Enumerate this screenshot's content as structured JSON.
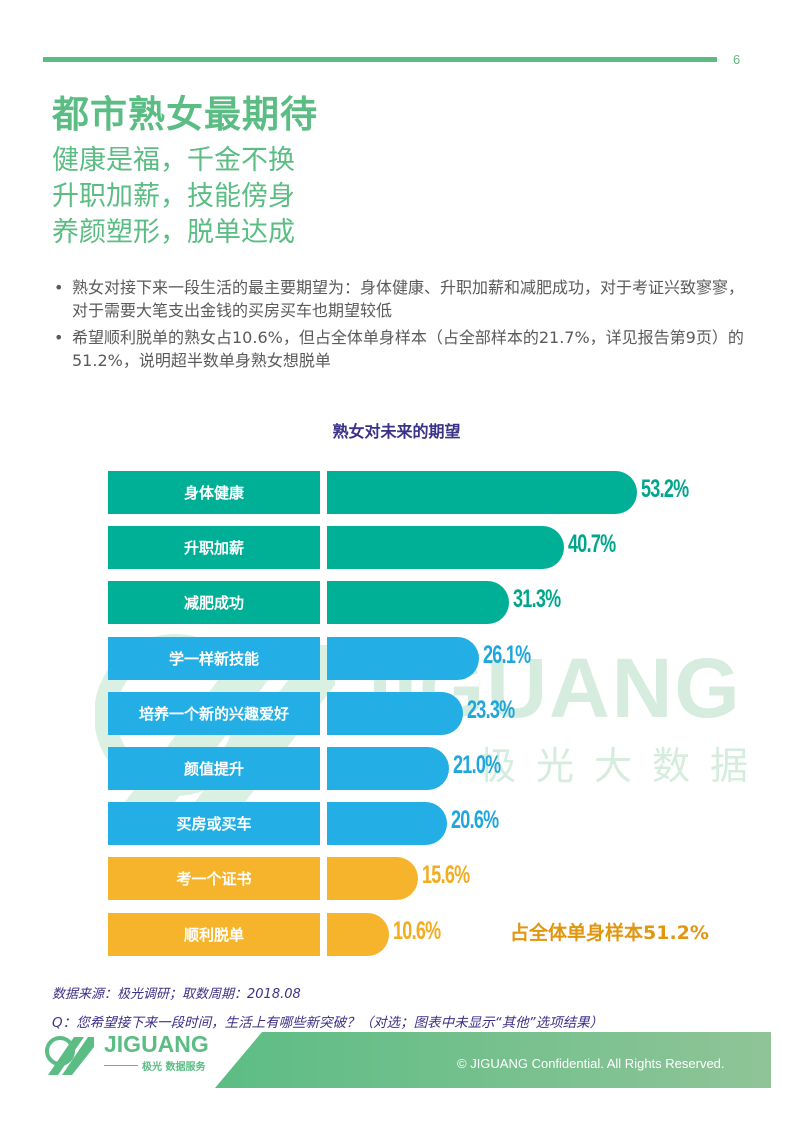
{
  "header": {
    "page_number": "6",
    "title": "都市熟女最期待",
    "slogans": [
      "健康是福，千金不换",
      "升职加薪，技能傍身",
      "养颜塑形，脱单达成"
    ]
  },
  "bullets": [
    "熟女对接下来一段生活的最主要期望为：身体健康、升职加薪和减肥成功，对于考证兴致寥寥，对于需要大笔支出金钱的买房买车也期望较低",
    "希望顺利脱单的熟女占10.6%，但占全体单身样本（占全部样本的21.7%，详见报告第9页）的51.2%，说明超半数单身熟女想脱单"
  ],
  "bullet_marker": "•",
  "watermark": {
    "brand": "JIGUANG",
    "subtitle": "极光大数据",
    "icon": "jiguang-logo-icon"
  },
  "chart_data": {
    "type": "bar",
    "orientation": "horizontal",
    "title": "熟女对未来的期望",
    "categories": [
      "身体健康",
      "升职加薪",
      "减肥成功",
      "学一样新技能",
      "培养一个新的兴趣爱好",
      "颜值提升",
      "买房或买车",
      "考一个证书",
      "顺利脱单"
    ],
    "values": [
      53.2,
      40.7,
      31.3,
      26.1,
      23.3,
      21.0,
      20.6,
      15.6,
      10.6
    ],
    "value_labels": [
      "53.2%",
      "40.7%",
      "31.3%",
      "26.1%",
      "23.3%",
      "21.0%",
      "20.6%",
      "15.6%",
      "10.6%"
    ],
    "unit": "%",
    "colors": [
      "#00b096",
      "#00b096",
      "#00b096",
      "#23aee5",
      "#23aee5",
      "#23aee5",
      "#23aee5",
      "#f6b42c",
      "#f6b42c"
    ],
    "value_label_colors": [
      "#00a58c",
      "#00a58c",
      "#00a58c",
      "#1fa6dc",
      "#1fa6dc",
      "#1fa6dc",
      "#1fa6dc",
      "#f2ac1e",
      "#f2ac1e"
    ],
    "annotations": [
      {
        "category": "顺利脱单",
        "text": "占全体单身样本51.2%",
        "color": "#e1960f"
      }
    ],
    "xlabel": "",
    "ylabel": "",
    "grid": false,
    "legend": null
  },
  "source": {
    "data_source": "数据来源：极光调研；取数周期：2018.08",
    "question": "Q：您希望接下来一段时间，生活上有哪些新突破？（对选；图表中未显示“其他”选项结果）"
  },
  "footer": {
    "brand": "JIGUANG",
    "tagline": "极光 数据服务",
    "copyright": "© JIGUANG Confidential. All Rights Reserved.",
    "logo_icon": "jiguang-logo-icon"
  },
  "colors": {
    "brand_green": "#5cbd84",
    "title_purple": "#3b3187",
    "footer_green_start": "#5cbd84",
    "footer_green_end": "#8fc497"
  }
}
